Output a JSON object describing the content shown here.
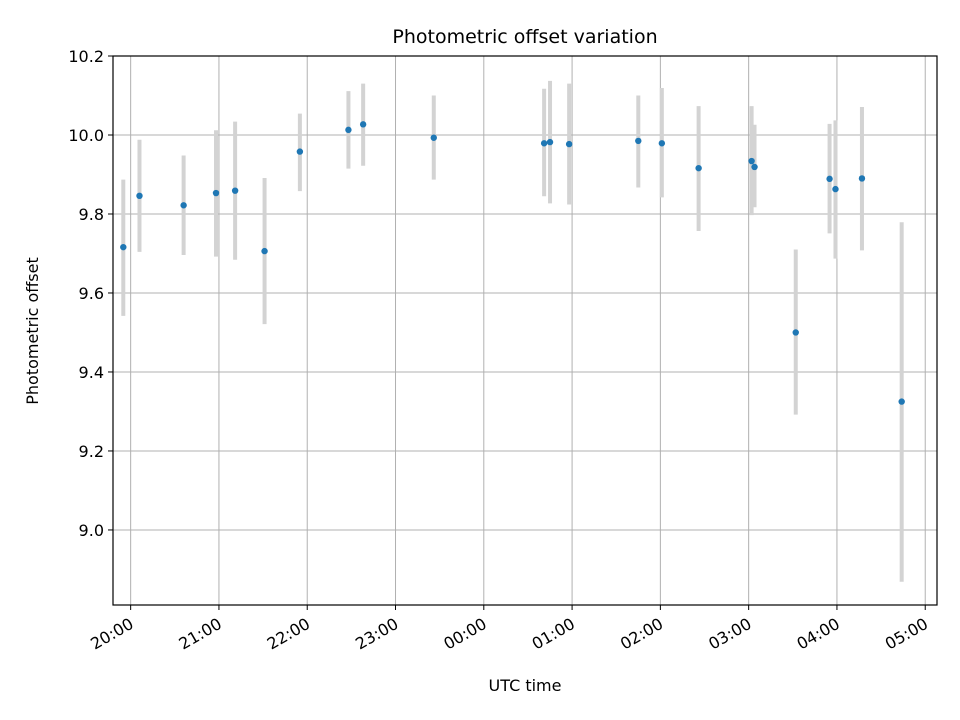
{
  "chart_data": {
    "type": "scatter",
    "title": "Photometric offset variation",
    "xlabel": "UTC time",
    "ylabel": "Photometric offset",
    "x_unit": "UTC time (HH:MM)",
    "x_tick_labels": [
      "20:00",
      "21:00",
      "22:00",
      "23:00",
      "00:00",
      "01:00",
      "02:00",
      "03:00",
      "04:00",
      "05:00"
    ],
    "y_ticks": [
      9.0,
      9.2,
      9.4,
      9.6,
      9.8,
      10.0,
      10.2
    ],
    "y_tick_labels": [
      "9.0",
      "9.2",
      "9.4",
      "9.6",
      "9.8",
      "10.0",
      "10.2"
    ],
    "xlim": [
      "19:48",
      "05:08"
    ],
    "ylim": [
      8.81,
      10.2
    ],
    "grid": true,
    "point_color": "#1f77b4",
    "errorbar_color": "#d3d3d3",
    "series": [
      {
        "points": [
          {
            "t": "19:55",
            "y": 9.716,
            "err_low": 9.542,
            "err_high": 9.887
          },
          {
            "t": "20:06",
            "y": 9.846,
            "err_low": 9.704,
            "err_high": 9.988
          },
          {
            "t": "20:36",
            "y": 9.822,
            "err_low": 9.696,
            "err_high": 9.948
          },
          {
            "t": "20:58",
            "y": 9.853,
            "err_low": 9.692,
            "err_high": 10.012
          },
          {
            "t": "21:11",
            "y": 9.859,
            "err_low": 9.684,
            "err_high": 10.034
          },
          {
            "t": "21:31",
            "y": 9.706,
            "err_low": 9.521,
            "err_high": 9.891
          },
          {
            "t": "21:55",
            "y": 9.958,
            "err_low": 9.858,
            "err_high": 10.054
          },
          {
            "t": "22:28",
            "y": 10.013,
            "err_low": 9.915,
            "err_high": 10.111
          },
          {
            "t": "22:38",
            "y": 10.027,
            "err_low": 9.922,
            "err_high": 10.13
          },
          {
            "t": "23:26",
            "y": 9.993,
            "err_low": 9.887,
            "err_high": 10.1
          },
          {
            "t": "00:41",
            "y": 9.979,
            "err_low": 9.845,
            "err_high": 10.117
          },
          {
            "t": "00:45",
            "y": 9.982,
            "err_low": 9.827,
            "err_high": 10.137
          },
          {
            "t": "00:58",
            "y": 9.977,
            "err_low": 9.824,
            "err_high": 10.13
          },
          {
            "t": "01:45",
            "y": 9.985,
            "err_low": 9.867,
            "err_high": 10.1
          },
          {
            "t": "02:01",
            "y": 9.979,
            "err_low": 9.842,
            "err_high": 10.119
          },
          {
            "t": "02:26",
            "y": 9.916,
            "err_low": 9.757,
            "err_high": 10.073
          },
          {
            "t": "03:02",
            "y": 9.934,
            "err_low": 9.797,
            "err_high": 10.073
          },
          {
            "t": "03:04",
            "y": 9.919,
            "err_low": 9.817,
            "err_high": 10.026
          },
          {
            "t": "03:32",
            "y": 9.5,
            "err_low": 9.292,
            "err_high": 9.71
          },
          {
            "t": "03:55",
            "y": 9.889,
            "err_low": 9.751,
            "err_high": 10.028
          },
          {
            "t": "03:59",
            "y": 9.863,
            "err_low": 9.687,
            "err_high": 10.037
          },
          {
            "t": "04:17",
            "y": 9.89,
            "err_low": 9.708,
            "err_high": 10.071
          },
          {
            "t": "04:44",
            "y": 9.325,
            "err_low": 8.869,
            "err_high": 9.779
          }
        ]
      }
    ]
  }
}
